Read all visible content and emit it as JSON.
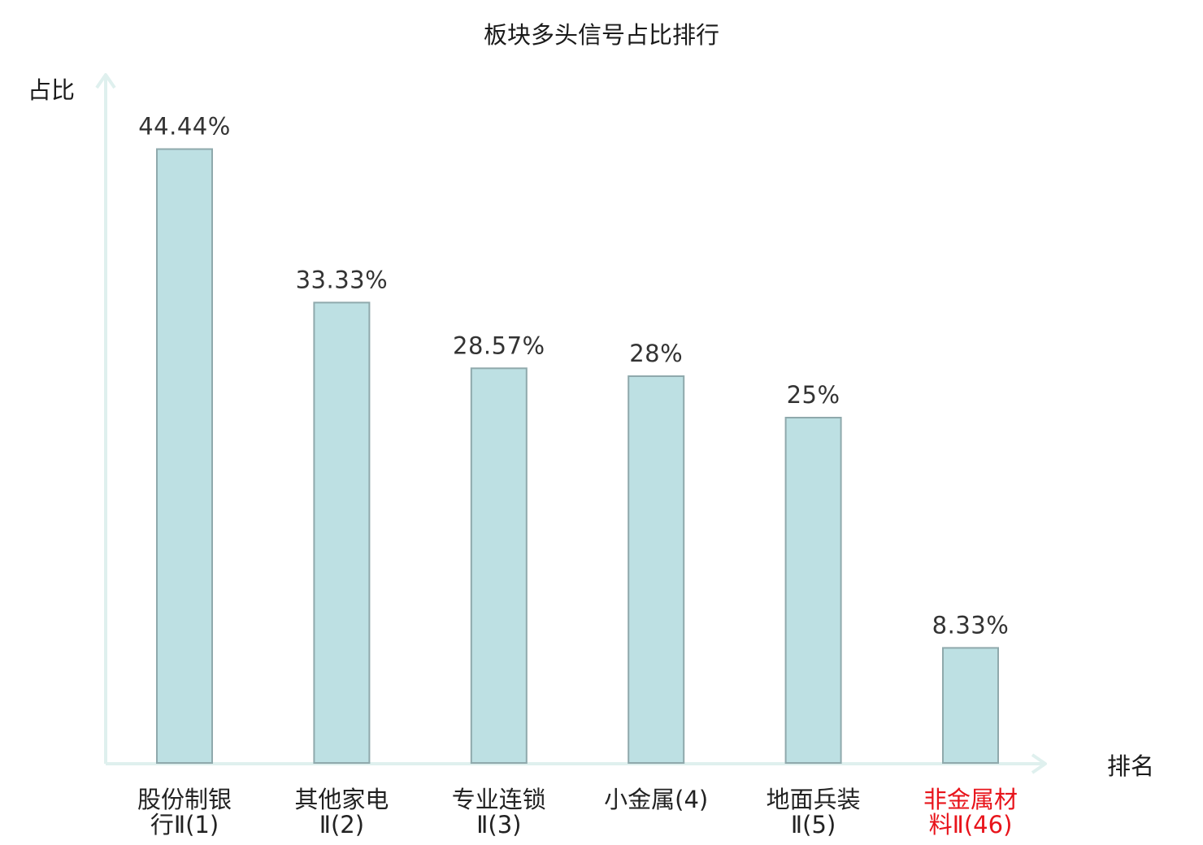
{
  "chart_data": {
    "type": "bar",
    "title": "板块多头信号占比排行",
    "ylabel": "占比",
    "xlabel": "排名",
    "ylim": [
      0,
      50
    ],
    "grid": false,
    "categories": [
      [
        "股份制银",
        "行Ⅱ(1)"
      ],
      [
        "其他家电",
        "Ⅱ(2)"
      ],
      [
        "专业连锁",
        "Ⅱ(3)"
      ],
      [
        "小金属(4)"
      ],
      [
        "地面兵装",
        "Ⅱ(5)"
      ],
      [
        "非金属材",
        "料Ⅱ(46)"
      ]
    ],
    "values": [
      44.44,
      33.33,
      28.57,
      28,
      25,
      8.33
    ],
    "value_labels": [
      "44.44%",
      "33.33%",
      "28.57%",
      "28%",
      "25%",
      "8.33%"
    ],
    "highlighted_category_index": 5,
    "colors": {
      "bar_fill": "#bde0e3",
      "bar_stroke": "#8fa9ac",
      "axis": "#dff0ee",
      "highlight_text": "#e8141b"
    }
  }
}
